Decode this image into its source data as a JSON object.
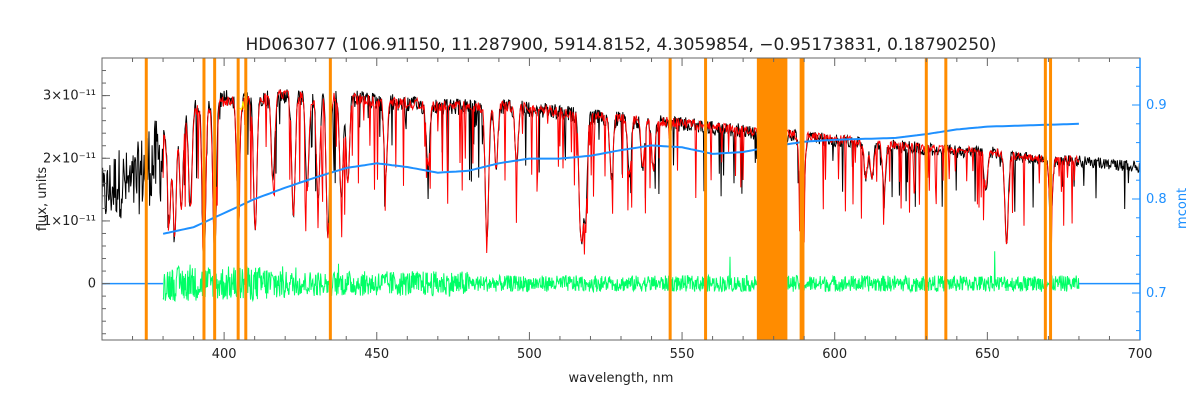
{
  "chart_data": {
    "type": "line",
    "title": "HD063077    (106.91150, 11.287900, 5914.8152, 4.3059854, −0.95173831, 0.18790250)",
    "xlabel": "wavelength, nm",
    "ylabel": "flux, units",
    "y2label": "mcont",
    "xlim": [
      360,
      700
    ],
    "ylim": [
      -9e-12,
      3.6e-11
    ],
    "y2lim": [
      0.65,
      0.95
    ],
    "x_ticks": [
      400,
      450,
      500,
      550,
      600,
      650,
      700
    ],
    "x_tick_labels": [
      "400",
      "450",
      "500",
      "550",
      "600",
      "650",
      "700"
    ],
    "y_ticks": [
      0,
      1e-11,
      2e-11,
      3e-11
    ],
    "y_tick_labels": [
      "0",
      "1×10⁻¹¹",
      "2×10⁻¹¹",
      "3×10⁻¹¹"
    ],
    "y2_ticks": [
      0.7,
      0.8,
      0.9
    ],
    "y2_tick_labels": [
      "0.7",
      "0.8",
      "0.9"
    ],
    "orange_lines": [
      374.5,
      393.4,
      396.9,
      404.6,
      407.1,
      434.8,
      546.1,
      557.7,
      589.0,
      589.6,
      630.0,
      636.4,
      669.0,
      670.7
    ],
    "orange_band": [
      574.5,
      584.5
    ],
    "series": [
      {
        "name": "",
        "color": "#000000",
        "x": [
          360,
          365,
          370,
          375,
          380,
          385,
          390,
          395,
          400,
          410,
          420,
          430,
          440,
          450,
          460,
          470,
          480,
          485,
          490,
          500,
          510,
          520,
          530,
          540,
          550,
          560,
          570,
          575,
          580,
          590,
          600,
          610,
          620,
          630,
          640,
          650,
          660,
          670,
          680,
          690,
          700
        ],
        "y": [
          1.75e-11,
          2.1e-11,
          2e-11,
          2.45e-11,
          2.55e-11,
          2.7e-11,
          2.95e-11,
          3e-11,
          3.1e-11,
          3.05e-11,
          3.15e-11,
          3.1e-11,
          3.1e-11,
          3.05e-11,
          3e-11,
          2.95e-11,
          2.95e-11,
          2.9e-11,
          2.95e-11,
          2.92e-11,
          2.85e-11,
          2.78e-11,
          2.75e-11,
          2.7e-11,
          2.66e-11,
          2.6e-11,
          2.55e-11,
          2.5e-11,
          2.48e-11,
          2.45e-11,
          2.4e-11,
          2.35e-11,
          2.3e-11,
          2.25e-11,
          2.2e-11,
          2.2e-11,
          2.12e-11,
          2.08e-11,
          2.05e-11,
          2e-11,
          1.95e-11
        ]
      },
      {
        "name": "",
        "color": "#ff0000",
        "x": [
          380,
          385,
          390,
          395,
          400,
          410,
          420,
          430,
          440,
          450,
          460,
          470,
          480,
          485,
          490,
          500,
          510,
          520,
          530,
          540,
          550,
          560,
          570,
          575,
          590,
          600,
          610,
          620,
          630,
          640,
          650,
          660,
          670,
          680
        ],
        "y": [
          2.4e-11,
          2.65e-11,
          2.85e-11,
          2.9e-11,
          3e-11,
          3e-11,
          3.1e-11,
          3.05e-11,
          3.05e-11,
          3e-11,
          2.97e-11,
          2.92e-11,
          2.92e-11,
          2.88e-11,
          2.92e-11,
          2.9e-11,
          2.82e-11,
          2.76e-11,
          2.72e-11,
          2.68e-11,
          2.64e-11,
          2.58e-11,
          2.52e-11,
          2.48e-11,
          2.44e-11,
          2.38e-11,
          2.33e-11,
          2.28e-11,
          2.23e-11,
          2.19e-11,
          2.18e-11,
          2.1e-11,
          2.06e-11,
          2.03e-11
        ]
      },
      {
        "name": "",
        "color": "#1e90ff",
        "axis": "right",
        "x": [
          380,
          390,
          400,
          410,
          420,
          430,
          440,
          450,
          460,
          470,
          480,
          490,
          500,
          510,
          520,
          530,
          540,
          550,
          560,
          570,
          580,
          590,
          600,
          610,
          620,
          630,
          640,
          650,
          660,
          670,
          680
        ],
        "y": [
          0.763,
          0.77,
          0.785,
          0.8,
          0.812,
          0.823,
          0.833,
          0.838,
          0.834,
          0.828,
          0.83,
          0.838,
          0.843,
          0.843,
          0.846,
          0.852,
          0.857,
          0.855,
          0.848,
          0.85,
          0.856,
          0.861,
          0.863,
          0.864,
          0.865,
          0.869,
          0.874,
          0.877,
          0.878,
          0.879,
          0.88
        ]
      },
      {
        "name": "",
        "color": "#00ff66",
        "x": [
          380,
          390,
          400,
          420,
          440,
          460,
          480,
          500,
          520,
          540,
          560,
          575,
          585,
          600,
          620,
          640,
          660,
          670,
          680
        ],
        "y": [
          0,
          0,
          0,
          0,
          0,
          0,
          0,
          0,
          0,
          0,
          0,
          0,
          0,
          0,
          0,
          0,
          0,
          0,
          0
        ]
      }
    ],
    "grid": false,
    "legend": "none"
  }
}
